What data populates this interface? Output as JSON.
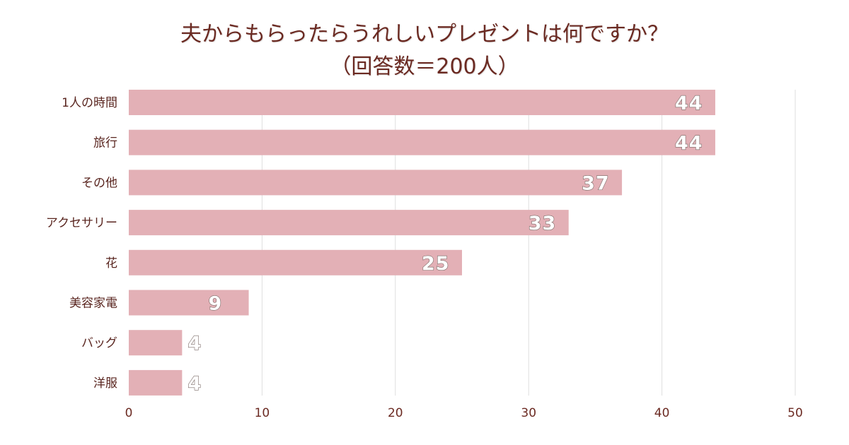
{
  "chart_data": {
    "type": "bar",
    "orientation": "horizontal",
    "title": "夫からもらったらうれしいプレゼントは何ですか？",
    "subtitle": "（回答数＝200人）",
    "categories": [
      "1人の時間",
      "旅行",
      "その他",
      "アクセサリー",
      "花",
      "美容家電",
      "バッグ",
      "洋服"
    ],
    "values": [
      44,
      44,
      37,
      33,
      25,
      9,
      4,
      4
    ],
    "xlim": [
      0,
      50
    ],
    "xticks": [
      0,
      10,
      20,
      30,
      40,
      50
    ],
    "grid": true,
    "xlabel": "",
    "ylabel": "",
    "bar_color": "#e3b0b6",
    "title_color": "#6b2a22"
  }
}
